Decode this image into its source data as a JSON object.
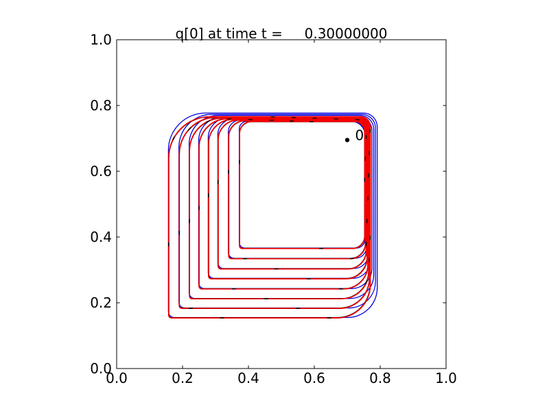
{
  "title": "q[0] at time t =     0.30000000",
  "chart_data": {
    "type": "contour",
    "title": "q[0] at time t =     0.30000000",
    "quantity_label": "q[0]",
    "time": 0.3,
    "time_text": "0.30000000",
    "xlim": [
      0.0,
      1.0
    ],
    "ylim": [
      0.0,
      1.0
    ],
    "xticks": [
      0.0,
      0.2,
      0.4,
      0.6,
      0.8,
      1.0
    ],
    "yticks": [
      0.0,
      0.2,
      0.4,
      0.6,
      0.8,
      1.0
    ],
    "xtick_labels": [
      "0.0",
      "0.2",
      "0.4",
      "0.6",
      "0.8",
      "1.0"
    ],
    "ytick_labels": [
      "0.0",
      "0.2",
      "0.4",
      "0.6",
      "0.8",
      "1.0"
    ],
    "grid": false,
    "gauge_point": {
      "label": "0",
      "x": 0.7,
      "y": 0.695
    },
    "colors": {
      "red_contour": "#f40000",
      "blue_contour": "#0000dd",
      "black_contour": "#000000",
      "axis": "#000000",
      "background": "#ffffff"
    },
    "contours": [
      {
        "left": 0.158,
        "bottom": 0.154,
        "top": 0.766,
        "right": 0.77,
        "blue_top": 0.777,
        "blue_right": 0.791,
        "corner_tl": 0.125,
        "corner_br": 0.1,
        "corner_tr": 0.03,
        "corner_bl": 0.008
      },
      {
        "left": 0.19,
        "bottom": 0.183,
        "top": 0.7639,
        "right": 0.7676,
        "blue_top": 0.7734,
        "blue_right": 0.7857,
        "corner_tl": 0.112,
        "corner_br": 0.091,
        "corner_tr": 0.03,
        "corner_bl": 0.008
      },
      {
        "left": 0.221,
        "bottom": 0.212,
        "top": 0.7618,
        "right": 0.7652,
        "blue_top": 0.7698,
        "blue_right": 0.7804,
        "corner_tl": 0.099,
        "corner_br": 0.082,
        "corner_tr": 0.03,
        "corner_bl": 0.008
      },
      {
        "left": 0.25,
        "bottom": 0.242,
        "top": 0.7597,
        "right": 0.7628,
        "blue_top": 0.7662,
        "blue_right": 0.7751,
        "corner_tl": 0.086,
        "corner_br": 0.073,
        "corner_tr": 0.03,
        "corner_bl": 0.008
      },
      {
        "left": 0.279,
        "bottom": 0.273,
        "top": 0.7576,
        "right": 0.7604,
        "blue_top": 0.7626,
        "blue_right": 0.7698,
        "corner_tl": 0.073,
        "corner_br": 0.064,
        "corner_tr": 0.03,
        "corner_bl": 0.008
      },
      {
        "left": 0.308,
        "bottom": 0.303,
        "top": 0.7555,
        "right": 0.758,
        "blue_top": 0.759,
        "blue_right": 0.7645,
        "corner_tl": 0.06,
        "corner_br": 0.055,
        "corner_tr": 0.03,
        "corner_bl": 0.008
      },
      {
        "left": 0.34,
        "bottom": 0.334,
        "top": 0.7534,
        "right": 0.7556,
        "blue_top": 0.7554,
        "blue_right": 0.7592,
        "corner_tl": 0.048,
        "corner_br": 0.046,
        "corner_tr": 0.03,
        "corner_bl": 0.008
      },
      {
        "left": 0.373,
        "bottom": 0.365,
        "top": 0.7513,
        "right": 0.7532,
        "blue_top": 0.7518,
        "blue_right": 0.7539,
        "corner_tl": 0.036,
        "corner_br": 0.037,
        "corner_tr": 0.03,
        "corner_bl": 0.008
      }
    ]
  }
}
